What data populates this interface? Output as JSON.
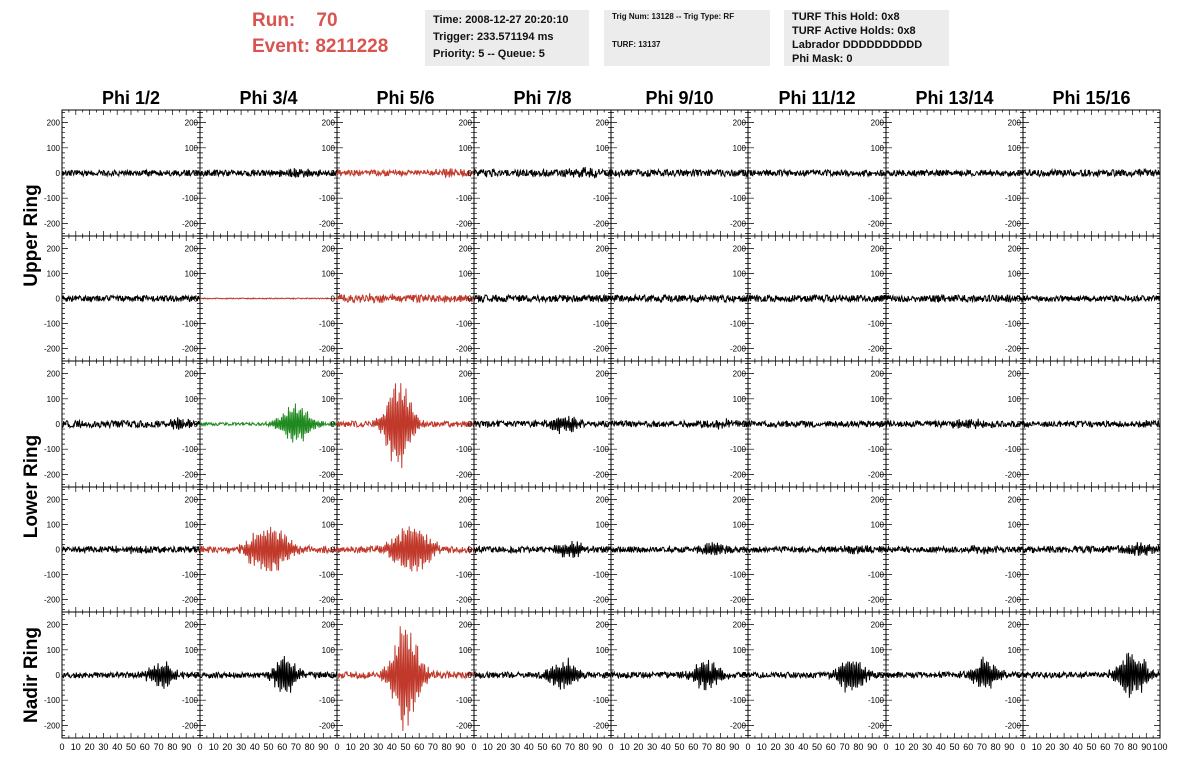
{
  "header": {
    "run_label": "Run:",
    "run_value": "70",
    "event_label": "Event:",
    "event_value": "8211228"
  },
  "info": {
    "time": "Time: 2008-12-27 20:20:10",
    "trigger": "Trigger: 233.571194 ms",
    "priority": "Priority: 5 -- Queue: 5",
    "trig_num": "Trig Num: 13128 -- Trig Type: RF",
    "turf": "TURF: 13137",
    "turf_hold": "TURF This Hold: 0x8",
    "turf_active": "TURF Active Holds: 0x8",
    "labrador": "Labrador DDDDDDDDDD",
    "phi_mask": "Phi Mask: 0"
  },
  "colors": {
    "normal": "#000000",
    "triggered": "#c0392b",
    "highlight": "#1f8a1f",
    "title_red": "#d9534f"
  },
  "chart_data": {
    "type": "line",
    "columns": [
      "Phi 1/2",
      "Phi 3/4",
      "Phi 5/6",
      "Phi 7/8",
      "Phi 9/10",
      "Phi 11/12",
      "Phi 13/14",
      "Phi 15/16"
    ],
    "ring_labels": [
      {
        "label": "Upper Ring",
        "rows": [
          0,
          1
        ]
      },
      {
        "label": "Lower Ring",
        "rows": [
          2,
          3
        ]
      },
      {
        "label": "Nadir Ring",
        "rows": [
          4
        ]
      }
    ],
    "ylim": [
      -250,
      250
    ],
    "yticks": [
      200,
      100,
      0,
      -100,
      -200
    ],
    "xlim": [
      0,
      100
    ],
    "xtick_labels": [
      "0",
      "10",
      "20",
      "30",
      "40",
      "50",
      "60",
      "70",
      "80",
      "90",
      "100"
    ],
    "panels": [
      [
        {
          "color": "normal",
          "noise": 12,
          "burst": 0,
          "center": 50,
          "width": 20
        },
        {
          "color": "normal",
          "noise": 12,
          "burst": 15,
          "center": 70,
          "width": 15
        },
        {
          "color": "triggered",
          "noise": 12,
          "burst": 12,
          "center": 80,
          "width": 12
        },
        {
          "color": "normal",
          "noise": 14,
          "burst": 15,
          "center": 80,
          "width": 15
        },
        {
          "color": "normal",
          "noise": 14,
          "burst": 0,
          "center": 50,
          "width": 20
        },
        {
          "color": "normal",
          "noise": 12,
          "burst": 0,
          "center": 50,
          "width": 20
        },
        {
          "color": "normal",
          "noise": 12,
          "burst": 0,
          "center": 50,
          "width": 20
        },
        {
          "color": "normal",
          "noise": 14,
          "burst": 0,
          "center": 50,
          "width": 20
        }
      ],
      [
        {
          "color": "normal",
          "noise": 12,
          "burst": 0,
          "center": 50,
          "width": 20
        },
        {
          "color": "triggered",
          "noise": 2,
          "burst": 0,
          "center": 50,
          "width": 20
        },
        {
          "color": "triggered",
          "noise": 15,
          "burst": 10,
          "center": 30,
          "width": 15
        },
        {
          "color": "normal",
          "noise": 14,
          "burst": 0,
          "center": 50,
          "width": 20
        },
        {
          "color": "normal",
          "noise": 14,
          "burst": 0,
          "center": 50,
          "width": 20
        },
        {
          "color": "normal",
          "noise": 14,
          "burst": 0,
          "center": 50,
          "width": 20
        },
        {
          "color": "normal",
          "noise": 14,
          "burst": 0,
          "center": 50,
          "width": 20
        },
        {
          "color": "normal",
          "noise": 12,
          "burst": 0,
          "center": 50,
          "width": 20
        }
      ],
      [
        {
          "color": "normal",
          "noise": 14,
          "burst": 15,
          "center": 85,
          "width": 10
        },
        {
          "color": "highlight",
          "noise": 6,
          "burst": 90,
          "center": 70,
          "width": 12
        },
        {
          "color": "triggered",
          "noise": 12,
          "burst": 210,
          "center": 45,
          "width": 10
        },
        {
          "color": "normal",
          "noise": 12,
          "burst": 35,
          "center": 65,
          "width": 12
        },
        {
          "color": "normal",
          "noise": 12,
          "burst": 15,
          "center": 80,
          "width": 15
        },
        {
          "color": "normal",
          "noise": 12,
          "burst": 0,
          "center": 50,
          "width": 20
        },
        {
          "color": "normal",
          "noise": 12,
          "burst": 15,
          "center": 60,
          "width": 15
        },
        {
          "color": "normal",
          "noise": 12,
          "burst": 10,
          "center": 85,
          "width": 10
        }
      ],
      [
        {
          "color": "normal",
          "noise": 12,
          "burst": 10,
          "center": 50,
          "width": 15
        },
        {
          "color": "triggered",
          "noise": 14,
          "burst": 110,
          "center": 50,
          "width": 16
        },
        {
          "color": "triggered",
          "noise": 14,
          "burst": 110,
          "center": 55,
          "width": 15
        },
        {
          "color": "normal",
          "noise": 12,
          "burst": 35,
          "center": 70,
          "width": 10
        },
        {
          "color": "normal",
          "noise": 12,
          "burst": 30,
          "center": 75,
          "width": 10
        },
        {
          "color": "normal",
          "noise": 12,
          "burst": 15,
          "center": 80,
          "width": 12
        },
        {
          "color": "normal",
          "noise": 12,
          "burst": 10,
          "center": 70,
          "width": 15
        },
        {
          "color": "normal",
          "noise": 14,
          "burst": 20,
          "center": 85,
          "width": 12
        }
      ],
      [
        {
          "color": "normal",
          "noise": 12,
          "burst": 60,
          "center": 72,
          "width": 10
        },
        {
          "color": "normal",
          "noise": 12,
          "burst": 80,
          "center": 62,
          "width": 10
        },
        {
          "color": "triggered",
          "noise": 14,
          "burst": 230,
          "center": 50,
          "width": 11
        },
        {
          "color": "normal",
          "noise": 12,
          "burst": 65,
          "center": 65,
          "width": 11
        },
        {
          "color": "normal",
          "noise": 12,
          "burst": 60,
          "center": 70,
          "width": 11
        },
        {
          "color": "normal",
          "noise": 12,
          "burst": 75,
          "center": 75,
          "width": 11
        },
        {
          "color": "normal",
          "noise": 12,
          "burst": 65,
          "center": 72,
          "width": 11
        },
        {
          "color": "normal",
          "noise": 12,
          "burst": 100,
          "center": 80,
          "width": 12
        }
      ]
    ]
  }
}
